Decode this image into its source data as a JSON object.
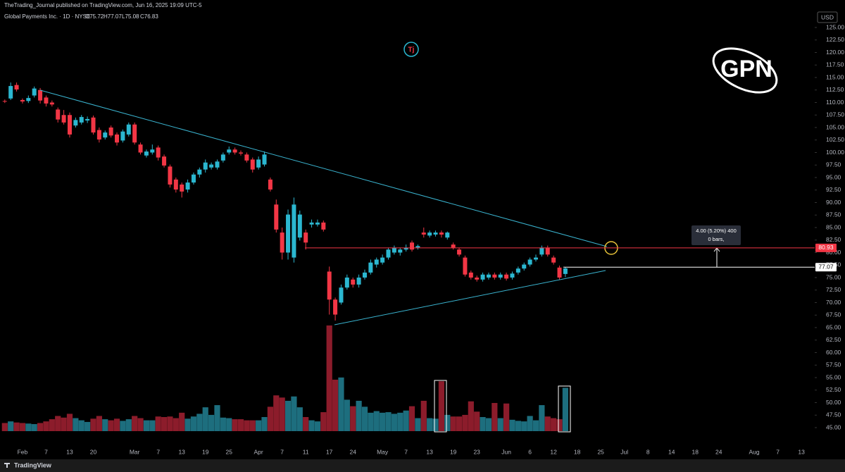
{
  "header": {
    "publisher": "TheTrading_Journal published on TradingView.com, Jun 16, 2025 19:09 UTC-5",
    "symbol": "Global Payments Inc. · 1D · NYSE",
    "o": "O75.72",
    "h": "H77.07",
    "l": "L75.08",
    "c": "C76.83"
  },
  "currency": "USD",
  "logo": "GPN",
  "badge": "Tj",
  "footer": "TradingView",
  "measure": {
    "label": "4.00 (5.20%) 400",
    "bars": "0 bars,"
  },
  "chart_data": {
    "type": "candlestick",
    "up_color": "#2bb7d0",
    "down_color": "#f23645",
    "volume_up_color": "#1d6e7e",
    "volume_down_color": "#8c1c2b",
    "ylim": [
      45,
      125
    ],
    "yticks": [
      {
        "value": 45,
        "label": "45.00"
      },
      {
        "value": 47.5,
        "label": "47.50"
      },
      {
        "value": 50,
        "label": "50.00"
      },
      {
        "value": 52.5,
        "label": "52.50"
      },
      {
        "value": 55,
        "label": "55.00"
      },
      {
        "value": 57.5,
        "label": "57.50"
      },
      {
        "value": 60,
        "label": "60.00"
      },
      {
        "value": 62.5,
        "label": "62.50"
      },
      {
        "value": 65,
        "label": "65.00"
      },
      {
        "value": 67.5,
        "label": "67.50"
      },
      {
        "value": 70,
        "label": "70.00"
      },
      {
        "value": 72.5,
        "label": "72.50"
      },
      {
        "value": 75,
        "label": "75.00"
      },
      {
        "value": 77.5,
        "label": "77.50"
      },
      {
        "value": 80,
        "label": "80.00"
      },
      {
        "value": 82.5,
        "label": "82.50"
      },
      {
        "value": 85,
        "label": "85.00"
      },
      {
        "value": 87.5,
        "label": "87.50"
      },
      {
        "value": 90,
        "label": "90.00"
      },
      {
        "value": 92.5,
        "label": "92.50"
      },
      {
        "value": 95,
        "label": "95.00"
      },
      {
        "value": 97.5,
        "label": "97.50"
      },
      {
        "value": 100,
        "label": "100.00"
      },
      {
        "value": 102.5,
        "label": "102.50"
      },
      {
        "value": 105,
        "label": "105.00"
      },
      {
        "value": 107.5,
        "label": "107.50"
      },
      {
        "value": 110,
        "label": "110.00"
      },
      {
        "value": 112.5,
        "label": "112.50"
      },
      {
        "value": 115,
        "label": "115.00"
      },
      {
        "value": 117.5,
        "label": "117.50"
      },
      {
        "value": 120,
        "label": "120.00"
      },
      {
        "value": 122.5,
        "label": "122.50"
      },
      {
        "value": 125,
        "label": "125.00"
      }
    ],
    "levels": [
      80.93,
      77.07
    ],
    "level_colors": [
      "#f23645",
      "#ffffff"
    ],
    "categories": [
      null,
      null,
      null,
      "Feb",
      null,
      null,
      null,
      "7",
      null,
      null,
      null,
      "13",
      null,
      null,
      null,
      "20",
      null,
      null,
      null,
      null,
      null,
      null,
      "Mar",
      null,
      null,
      null,
      "7",
      null,
      null,
      null,
      "13",
      null,
      null,
      null,
      "19",
      null,
      null,
      null,
      "25",
      null,
      null,
      null,
      null,
      "Apr",
      null,
      null,
      null,
      "7",
      null,
      null,
      null,
      "11",
      null,
      null,
      null,
      "17",
      null,
      null,
      null,
      "24",
      null,
      null,
      null,
      null,
      "May",
      null,
      null,
      null,
      "7",
      null,
      null,
      null,
      "13",
      null,
      null,
      null,
      "19",
      null,
      null,
      null,
      "23",
      null,
      null,
      null,
      null,
      "Jun",
      null,
      null,
      null,
      "6",
      null,
      null,
      null,
      "12",
      null,
      null,
      null,
      "18",
      null,
      null,
      null,
      "25",
      null,
      null,
      null,
      "Jul",
      null,
      null,
      null,
      "8",
      null,
      null,
      null,
      "14",
      null,
      null,
      null,
      "18",
      null,
      null,
      null,
      "24",
      null,
      null,
      null,
      null,
      null,
      "Aug",
      null,
      null,
      null,
      "7",
      null,
      null,
      null,
      "13",
      null,
      null
    ],
    "open": [
      110.3,
      110.8,
      113.5,
      110.5,
      110.3,
      111.4,
      112.5,
      111.0,
      110.0,
      108.6,
      107.5,
      107.5,
      105.4,
      106.0,
      106.4,
      107.0,
      104.5,
      103.0,
      105.0,
      103.6,
      102.4,
      103.6,
      105.6,
      101.6,
      99.4,
      100.0,
      101.0,
      99.2,
      97.2,
      94.6,
      93.6,
      92.6,
      94.0,
      95.6,
      96.6,
      97.0,
      97.0,
      98.4,
      100.0,
      100.6,
      100.0,
      99.6,
      98.6,
      97.0,
      97.6,
      94.6,
      89.6,
      84.0,
      80.0,
      79.0,
      83.0,
      84.0,
      85.6,
      85.6,
      86.0,
      76.2,
      70.6,
      70.0,
      73.0,
      74.6,
      73.6,
      75.0,
      76.0,
      77.6,
      78.0,
      79.0,
      80.0,
      80.0,
      80.6,
      82.0,
      81.0,
      84.0,
      83.4,
      83.6,
      84.0,
      83.0,
      81.6,
      80.6,
      79.0,
      76.0,
      75.0,
      74.6,
      75.0,
      75.6,
      75.0,
      75.6,
      75.0,
      76.0,
      76.8,
      77.6,
      78.6,
      79.6,
      81.0,
      79.0,
      77.0,
      75.72,
      null,
      null,
      null,
      null,
      null,
      null,
      null,
      null,
      null,
      null,
      null,
      null,
      null,
      null,
      null,
      null,
      null,
      null,
      null,
      null,
      null,
      null,
      null,
      null,
      null,
      null,
      null,
      null,
      null,
      null,
      null,
      null,
      null,
      null,
      null,
      null,
      null,
      null,
      null,
      null,
      null,
      null
    ],
    "high": [
      110.6,
      114.0,
      114.0,
      110.8,
      111.4,
      113.2,
      112.9,
      111.4,
      110.4,
      109.0,
      108.5,
      108.0,
      107.0,
      107.5,
      107.2,
      107.4,
      105.0,
      104.4,
      105.4,
      104.0,
      104.6,
      106.0,
      106.0,
      102.0,
      100.6,
      101.6,
      101.4,
      99.6,
      97.6,
      95.0,
      94.0,
      94.6,
      96.0,
      97.0,
      98.6,
      98.0,
      98.6,
      100.0,
      101.2,
      101.0,
      100.4,
      100.0,
      99.0,
      99.2,
      100.2,
      95.0,
      90.6,
      85.0,
      88.6,
      91.0,
      88.4,
      84.6,
      86.6,
      86.6,
      86.4,
      77.2,
      71.0,
      73.6,
      75.6,
      75.0,
      75.6,
      76.6,
      78.6,
      79.0,
      79.6,
      81.0,
      81.4,
      81.0,
      81.6,
      82.4,
      81.6,
      85.0,
      84.4,
      84.4,
      84.4,
      84.2,
      82.0,
      81.0,
      79.4,
      76.4,
      75.4,
      76.0,
      76.0,
      76.0,
      76.0,
      76.0,
      76.2,
      77.2,
      78.0,
      79.0,
      79.6,
      81.4,
      81.4,
      79.4,
      77.4,
      77.07,
      null,
      null,
      null,
      null,
      null,
      null,
      null,
      null,
      null,
      null,
      null,
      null,
      null,
      null,
      null,
      null,
      null,
      null,
      null,
      null,
      null,
      null,
      null,
      null,
      null,
      null,
      null,
      null,
      null,
      null,
      null,
      null,
      null,
      null,
      null,
      null,
      null,
      null,
      null,
      null,
      null,
      null
    ],
    "low": [
      109.9,
      110.5,
      112.2,
      109.8,
      109.9,
      111.0,
      109.8,
      109.2,
      109.2,
      106.0,
      105.6,
      103.0,
      105.0,
      105.6,
      105.9,
      103.6,
      102.0,
      102.6,
      103.0,
      101.4,
      102.0,
      103.2,
      101.6,
      99.6,
      99.0,
      99.6,
      98.4,
      97.0,
      93.0,
      92.0,
      91.0,
      92.0,
      93.6,
      95.0,
      96.0,
      96.6,
      96.6,
      98.0,
      99.6,
      99.6,
      99.4,
      98.0,
      96.0,
      96.6,
      97.2,
      92.2,
      84.0,
      78.6,
      78.6,
      78.0,
      82.4,
      80.6,
      85.0,
      85.2,
      84.2,
      67.6,
      66.4,
      69.6,
      72.6,
      73.0,
      73.0,
      74.6,
      75.6,
      77.0,
      77.6,
      78.6,
      79.6,
      79.4,
      80.2,
      80.2,
      80.6,
      83.0,
      83.0,
      83.2,
      83.0,
      82.6,
      80.6,
      79.2,
      75.2,
      74.6,
      74.2,
      74.2,
      74.6,
      74.6,
      74.6,
      74.4,
      74.6,
      75.6,
      76.4,
      77.2,
      78.2,
      79.2,
      79.2,
      77.6,
      74.6,
      75.08,
      null,
      null,
      null,
      null,
      null,
      null,
      null,
      null,
      null,
      null,
      null,
      null,
      null,
      null,
      null,
      null,
      null,
      null,
      null,
      null,
      null,
      null,
      null,
      null,
      null,
      null,
      null,
      null,
      null,
      null,
      null,
      null,
      null,
      null,
      null,
      null,
      null,
      null,
      null,
      null,
      null,
      null
    ],
    "close": [
      110.2,
      113.3,
      112.6,
      110.2,
      110.9,
      112.8,
      110.4,
      109.8,
      109.6,
      106.6,
      106.0,
      103.6,
      106.5,
      107.1,
      106.7,
      104.0,
      102.6,
      104.0,
      103.4,
      102.0,
      104.2,
      105.6,
      102.0,
      100.0,
      100.2,
      100.6,
      99.0,
      97.4,
      93.6,
      92.6,
      92.2,
      94.0,
      95.6,
      96.6,
      98.0,
      97.6,
      98.2,
      99.6,
      100.6,
      100.0,
      99.8,
      98.4,
      96.6,
      98.6,
      99.6,
      92.6,
      84.6,
      80.0,
      87.6,
      89.6,
      87.6,
      82.0,
      86.0,
      86.0,
      84.6,
      70.6,
      67.6,
      73.0,
      75.0,
      73.6,
      75.0,
      76.0,
      78.0,
      78.6,
      79.0,
      80.6,
      81.0,
      80.6,
      81.0,
      80.6,
      81.3,
      83.6,
      84.0,
      84.0,
      83.6,
      84.0,
      81.0,
      79.6,
      75.6,
      75.0,
      74.6,
      75.6,
      75.6,
      75.0,
      75.6,
      74.8,
      75.8,
      76.8,
      77.6,
      78.6,
      79.0,
      81.0,
      79.6,
      78.0,
      75.0,
      76.83,
      null,
      null,
      null,
      null,
      null,
      null,
      null,
      null,
      null,
      null,
      null,
      null,
      null,
      null,
      null,
      null,
      null,
      null,
      null,
      null,
      null,
      null,
      null,
      null,
      null,
      null,
      null,
      null,
      null,
      null,
      null,
      null,
      null,
      null,
      null,
      null,
      null,
      null,
      null,
      null,
      null,
      null
    ],
    "volume": [
      1.5,
      1.8,
      1.6,
      1.5,
      1.4,
      1.3,
      1.5,
      1.8,
      2.2,
      2.8,
      2.5,
      3.2,
      2.4,
      2.0,
      1.7,
      2.3,
      2.8,
      2.2,
      2.0,
      2.3,
      1.9,
      2.2,
      2.8,
      2.4,
      2.0,
      2.0,
      2.7,
      2.6,
      2.7,
      2.4,
      3.4,
      2.3,
      2.7,
      3.2,
      4.4,
      3.0,
      4.8,
      2.5,
      2.4,
      2.2,
      2.2,
      2.0,
      2.0,
      2.0,
      2.6,
      4.5,
      6.6,
      6.2,
      5.6,
      6.4,
      4.4,
      2.6,
      2.0,
      1.8,
      3.5,
      19.5,
      9.5,
      9.9,
      5.8,
      4.6,
      5.6,
      4.5,
      3.4,
      3.7,
      3.4,
      3.5,
      3.2,
      3.4,
      3.8,
      4.6,
      2.4,
      5.6,
      2.4,
      2.3,
      9.2,
      3.0,
      2.7,
      2.7,
      3.0,
      5.5,
      3.6,
      2.6,
      2.4,
      5.2,
      2.4,
      5.1,
      2.1,
      1.9,
      1.8,
      2.8,
      2.0,
      4.8,
      2.7,
      2.4,
      2.2,
      8.0,
      null,
      null,
      null,
      null,
      null,
      null,
      null,
      null,
      null,
      null,
      null,
      null,
      null,
      null,
      null,
      null,
      null,
      null,
      null,
      null,
      null,
      null,
      null,
      null,
      null,
      null,
      null,
      null,
      null,
      null,
      null,
      null,
      null,
      null,
      null,
      null,
      null,
      null,
      null,
      null,
      null,
      null
    ]
  }
}
